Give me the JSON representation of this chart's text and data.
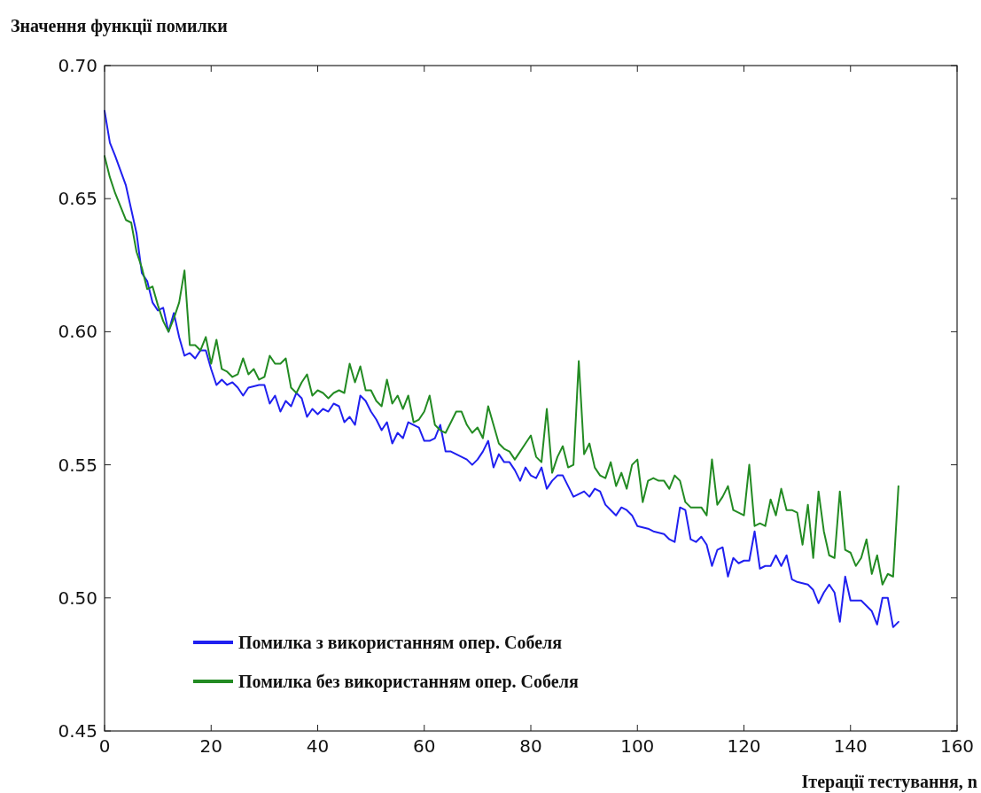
{
  "chart_data": {
    "type": "line",
    "ylabel": "Значення функції помилки",
    "xlabel": "Ітерації тестування, n",
    "xlim": [
      0,
      160
    ],
    "xticks": [
      0,
      20,
      40,
      60,
      80,
      100,
      120,
      140,
      160
    ],
    "ylim": [
      0.45,
      0.7
    ],
    "yticks": [
      {
        "value": 0.45,
        "label": "0.45"
      },
      {
        "value": 0.5,
        "label": "0.50"
      },
      {
        "value": 0.55,
        "label": "0.55"
      },
      {
        "value": 0.6,
        "label": "0.60"
      },
      {
        "value": 0.65,
        "label": "0.65"
      },
      {
        "value": 0.7,
        "label": "0.70"
      }
    ],
    "grid": false,
    "legend": "bottom left",
    "marker": "none",
    "line_style": "solid",
    "series": [
      {
        "name": "Помилка з використанням опер. Собеля",
        "color": "#2020f0",
        "x": [
          0,
          1,
          2,
          4,
          6,
          7,
          8,
          9,
          10,
          11,
          12,
          13,
          14,
          15,
          16,
          17,
          18,
          19,
          20,
          21,
          22,
          23,
          24,
          25,
          26,
          27,
          29,
          30,
          31,
          32,
          33,
          34,
          35,
          36,
          37,
          38,
          39,
          40,
          41,
          42,
          43,
          44,
          45,
          46,
          47,
          48,
          49,
          50,
          51,
          52,
          53,
          54,
          55,
          56,
          57,
          58,
          59,
          60,
          61,
          62,
          63,
          64,
          65,
          66,
          68,
          69,
          70,
          71,
          72,
          73,
          74,
          75,
          76,
          77,
          78,
          79,
          80,
          81,
          82,
          83,
          84,
          85,
          86,
          88,
          89,
          90,
          91,
          92,
          93,
          94,
          95,
          96,
          97,
          98,
          99,
          100,
          102,
          103,
          105,
          106,
          107,
          108,
          109,
          110,
          111,
          112,
          113,
          114,
          115,
          116,
          117,
          118,
          119,
          120,
          121,
          122,
          123,
          124,
          125,
          126,
          127,
          128,
          129,
          130,
          132,
          133,
          134,
          135,
          136,
          137,
          138,
          139,
          140,
          141,
          142,
          144,
          145,
          146,
          147,
          148,
          149
        ],
        "values": [
          0.683,
          0.671,
          0.666,
          0.655,
          0.637,
          0.622,
          0.619,
          0.611,
          0.608,
          0.609,
          0.6,
          0.607,
          0.598,
          0.591,
          0.592,
          0.59,
          0.593,
          0.593,
          0.586,
          0.58,
          0.582,
          0.58,
          0.581,
          0.579,
          0.576,
          0.579,
          0.58,
          0.58,
          0.573,
          0.576,
          0.57,
          0.574,
          0.572,
          0.577,
          0.575,
          0.568,
          0.571,
          0.569,
          0.571,
          0.57,
          0.573,
          0.572,
          0.566,
          0.568,
          0.565,
          0.576,
          0.574,
          0.57,
          0.567,
          0.563,
          0.566,
          0.558,
          0.562,
          0.56,
          0.566,
          0.565,
          0.564,
          0.559,
          0.559,
          0.56,
          0.565,
          0.555,
          0.555,
          0.554,
          0.552,
          0.55,
          0.552,
          0.555,
          0.559,
          0.549,
          0.554,
          0.551,
          0.551,
          0.548,
          0.544,
          0.549,
          0.546,
          0.545,
          0.549,
          0.541,
          0.544,
          0.546,
          0.546,
          0.538,
          0.539,
          0.54,
          0.538,
          0.541,
          0.54,
          0.535,
          0.533,
          0.531,
          0.534,
          0.533,
          0.531,
          0.527,
          0.526,
          0.525,
          0.524,
          0.522,
          0.521,
          0.534,
          0.533,
          0.522,
          0.521,
          0.523,
          0.52,
          0.512,
          0.518,
          0.519,
          0.508,
          0.515,
          0.513,
          0.514,
          0.514,
          0.525,
          0.511,
          0.512,
          0.512,
          0.516,
          0.512,
          0.516,
          0.507,
          0.506,
          0.505,
          0.503,
          0.498,
          0.502,
          0.505,
          0.502,
          0.491,
          0.508,
          0.499,
          0.499,
          0.499,
          0.495,
          0.49,
          0.5,
          0.5,
          0.489,
          0.491
        ]
      },
      {
        "name": "Помилка без використанням опер. Собеля",
        "color": "#238b23",
        "x": [
          0,
          1,
          2,
          3,
          4,
          5,
          6,
          7,
          8,
          9,
          10,
          11,
          12,
          13,
          14,
          15,
          16,
          17,
          18,
          19,
          20,
          21,
          22,
          23,
          24,
          25,
          26,
          27,
          28,
          29,
          30,
          31,
          32,
          33,
          34,
          35,
          36,
          37,
          38,
          39,
          40,
          41,
          42,
          43,
          44,
          45,
          46,
          47,
          48,
          49,
          50,
          51,
          52,
          53,
          54,
          55,
          56,
          57,
          58,
          59,
          60,
          61,
          62,
          63,
          64,
          66,
          67,
          68,
          69,
          70,
          71,
          72,
          73,
          74,
          75,
          76,
          77,
          78,
          79,
          80,
          81,
          82,
          83,
          84,
          85,
          86,
          87,
          88,
          89,
          90,
          91,
          92,
          93,
          94,
          95,
          96,
          97,
          98,
          99,
          100,
          101,
          102,
          103,
          104,
          105,
          106,
          107,
          108,
          109,
          110,
          111,
          112,
          113,
          114,
          115,
          116,
          117,
          118,
          119,
          120,
          121,
          122,
          123,
          124,
          125,
          126,
          127,
          128,
          129,
          130,
          131,
          132,
          133,
          134,
          135,
          136,
          137,
          138,
          139,
          140,
          141,
          142,
          143,
          144,
          145,
          146,
          147,
          148,
          149
        ],
        "values": [
          0.666,
          0.658,
          0.652,
          0.647,
          0.642,
          0.641,
          0.63,
          0.624,
          0.616,
          0.617,
          0.61,
          0.604,
          0.6,
          0.605,
          0.611,
          0.623,
          0.595,
          0.595,
          0.593,
          0.598,
          0.588,
          0.597,
          0.586,
          0.585,
          0.583,
          0.584,
          0.59,
          0.584,
          0.586,
          0.582,
          0.583,
          0.591,
          0.588,
          0.588,
          0.59,
          0.579,
          0.577,
          0.581,
          0.584,
          0.576,
          0.578,
          0.577,
          0.575,
          0.577,
          0.578,
          0.577,
          0.588,
          0.581,
          0.587,
          0.578,
          0.578,
          0.574,
          0.572,
          0.582,
          0.573,
          0.576,
          0.571,
          0.576,
          0.566,
          0.567,
          0.57,
          0.576,
          0.565,
          0.563,
          0.562,
          0.57,
          0.57,
          0.565,
          0.562,
          0.564,
          0.56,
          0.572,
          0.565,
          0.558,
          0.556,
          0.555,
          0.552,
          0.555,
          0.558,
          0.561,
          0.553,
          0.551,
          0.571,
          0.547,
          0.553,
          0.557,
          0.549,
          0.55,
          0.589,
          0.554,
          0.558,
          0.549,
          0.546,
          0.545,
          0.551,
          0.542,
          0.547,
          0.541,
          0.55,
          0.552,
          0.536,
          0.544,
          0.545,
          0.544,
          0.544,
          0.541,
          0.546,
          0.544,
          0.536,
          0.534,
          0.534,
          0.534,
          0.531,
          0.552,
          0.535,
          0.538,
          0.542,
          0.533,
          0.532,
          0.531,
          0.55,
          0.527,
          0.528,
          0.527,
          0.537,
          0.531,
          0.541,
          0.533,
          0.533,
          0.532,
          0.52,
          0.535,
          0.515,
          0.54,
          0.525,
          0.516,
          0.515,
          0.54,
          0.518,
          0.517,
          0.512,
          0.515,
          0.522,
          0.509,
          0.516,
          0.505,
          0.509,
          0.508,
          0.542
        ]
      }
    ]
  }
}
